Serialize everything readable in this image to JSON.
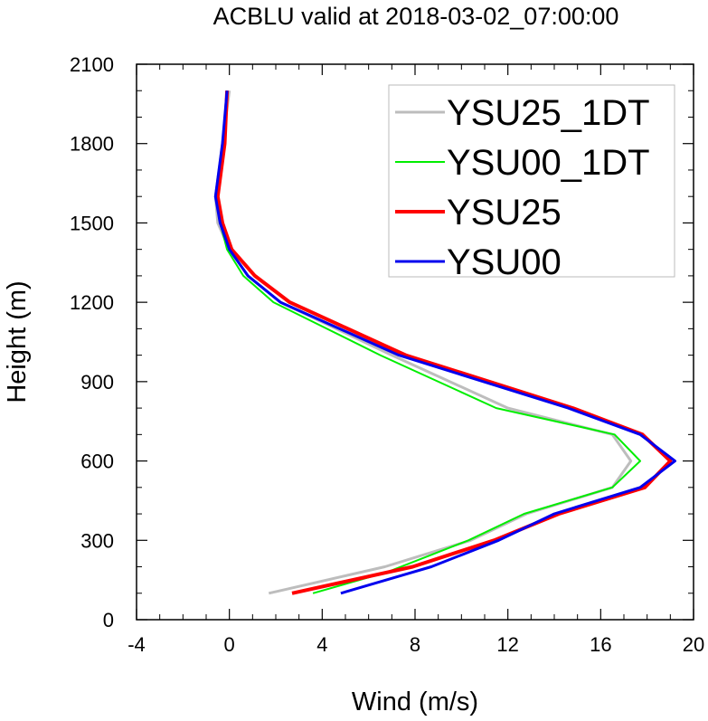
{
  "chart_data": {
    "type": "line",
    "title": "ACBLU valid at 2018-03-02_07:00:00",
    "xlabel": "Wind (m/s)",
    "ylabel": "Height (m)",
    "xlim": [
      -4,
      20
    ],
    "ylim": [
      0,
      2100
    ],
    "xticks": [
      -4,
      0,
      4,
      8,
      12,
      16,
      20
    ],
    "yticks": [
      0,
      300,
      600,
      900,
      1200,
      1500,
      1800,
      2100
    ],
    "legend_position": "top-right",
    "grid": false,
    "series": [
      {
        "name": "YSU25_1DT",
        "color": "#bdbdbd",
        "width": 3,
        "points": [
          [
            1.7,
            100
          ],
          [
            6.7,
            200
          ],
          [
            10.4,
            300
          ],
          [
            12.8,
            400
          ],
          [
            16.5,
            500
          ],
          [
            17.3,
            600
          ],
          [
            16.5,
            700
          ],
          [
            12.0,
            800
          ],
          [
            7.0,
            1000
          ],
          [
            2.2,
            1200
          ],
          [
            0.8,
            1300
          ],
          [
            0.0,
            1400
          ],
          [
            -0.5,
            1500
          ],
          [
            -0.6,
            1600
          ],
          [
            -0.3,
            1800
          ],
          [
            0.0,
            2000
          ]
        ]
      },
      {
        "name": "YSU00_1DT",
        "color": "#00ee00",
        "width": 2,
        "points": [
          [
            3.6,
            100
          ],
          [
            6.8,
            180
          ],
          [
            10.3,
            300
          ],
          [
            12.7,
            400
          ],
          [
            16.5,
            500
          ],
          [
            17.7,
            600
          ],
          [
            16.6,
            700
          ],
          [
            11.5,
            800
          ],
          [
            6.5,
            1000
          ],
          [
            1.9,
            1200
          ],
          [
            0.6,
            1300
          ],
          [
            -0.1,
            1400
          ],
          [
            -0.4,
            1500
          ],
          [
            -0.5,
            1600
          ],
          [
            -0.3,
            1800
          ],
          [
            -0.1,
            2000
          ]
        ]
      },
      {
        "name": "YSU25",
        "color": "#ff0000",
        "width": 4,
        "points": [
          [
            2.7,
            100
          ],
          [
            7.9,
            200
          ],
          [
            11.4,
            300
          ],
          [
            14.2,
            400
          ],
          [
            17.9,
            500
          ],
          [
            19.0,
            600
          ],
          [
            17.8,
            700
          ],
          [
            14.8,
            800
          ],
          [
            7.6,
            1000
          ],
          [
            2.6,
            1200
          ],
          [
            1.1,
            1300
          ],
          [
            0.1,
            1400
          ],
          [
            -0.3,
            1500
          ],
          [
            -0.5,
            1600
          ],
          [
            -0.2,
            1800
          ],
          [
            -0.1,
            2000
          ]
        ]
      },
      {
        "name": "YSU00",
        "color": "#0000ee",
        "width": 3,
        "points": [
          [
            4.8,
            100
          ],
          [
            8.7,
            200
          ],
          [
            11.6,
            300
          ],
          [
            14.0,
            400
          ],
          [
            17.7,
            500
          ],
          [
            19.2,
            600
          ],
          [
            17.7,
            700
          ],
          [
            14.6,
            800
          ],
          [
            7.3,
            1000
          ],
          [
            2.2,
            1200
          ],
          [
            0.8,
            1300
          ],
          [
            0.0,
            1400
          ],
          [
            -0.4,
            1500
          ],
          [
            -0.6,
            1600
          ],
          [
            -0.3,
            1800
          ],
          [
            -0.1,
            2000
          ]
        ]
      }
    ]
  }
}
